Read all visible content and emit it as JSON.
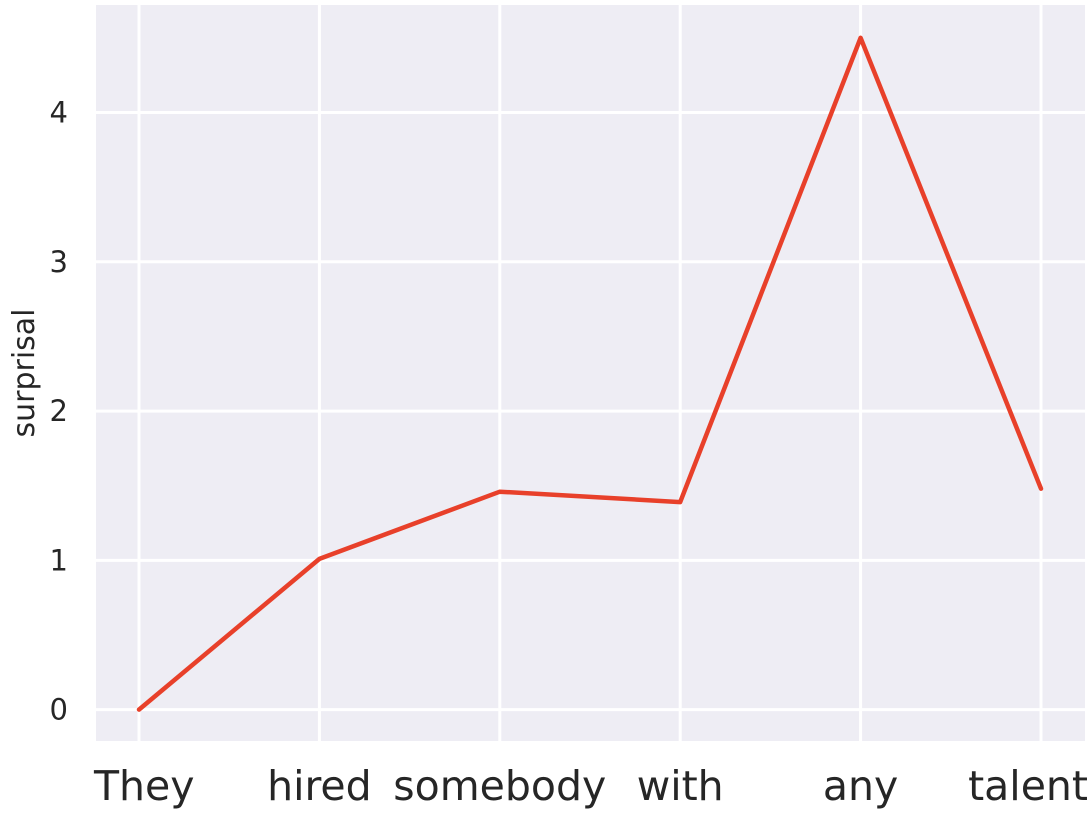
{
  "chart_data": {
    "type": "line",
    "title": "",
    "xlabel": "",
    "ylabel": "surprisal",
    "categories": [
      "They",
      "hired",
      "somebody",
      "with",
      "any",
      "talent"
    ],
    "series": [
      {
        "values": [
          0.0,
          1.01,
          1.46,
          1.39,
          4.5,
          1.48
        ]
      }
    ],
    "y_ticks": [
      0,
      1,
      2,
      3,
      4
    ],
    "ylim": [
      -0.21,
      4.72
    ],
    "grid": true,
    "legend": "none",
    "colors": {
      "background": "#eeedf4",
      "line": "#e8402a",
      "grid": "#ffffff",
      "text": "#262626"
    }
  }
}
